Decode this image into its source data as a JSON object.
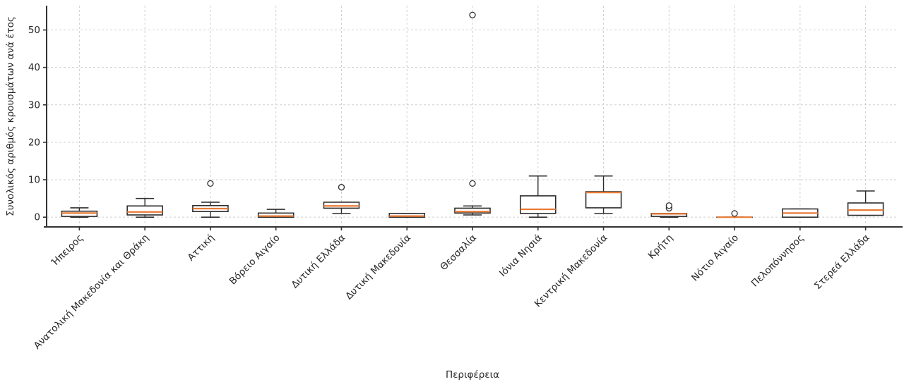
{
  "chart_data": {
    "type": "boxplot",
    "title": "",
    "xlabel": "Περιφέρεια",
    "ylabel": "Συνολικός αριθμός κρουσμάτων ανά έτος",
    "ylim": [
      -2.6,
      56.5
    ],
    "yticks": [
      0,
      10,
      20,
      30,
      40,
      50
    ],
    "grid": "both-dashed",
    "legend": "none",
    "categories": [
      "Ήπειρος",
      "Ανατολική Μακεδονία και Θράκη",
      "Αττική",
      "Βόρειο Αιγαίο",
      "Δυτική Ελλάδα",
      "Δυτική Μακεδονία",
      "Θεσσαλία",
      "Ιόνια Νησιά",
      "Κεντρική Μακεδονία",
      "Κρήτη",
      "Νότιο Αιγαίο",
      "Πελοπόννησος",
      "Στερεά Ελλάδα"
    ],
    "series": [
      {
        "label": "Ήπειρος",
        "whislo": 0,
        "q1": 0.2,
        "med": 1.1,
        "q3": 1.6,
        "whishi": 2.5,
        "fliers": []
      },
      {
        "label": "Ανατολική Μακεδονία και Θράκη",
        "whislo": 0,
        "q1": 0.6,
        "med": 1.4,
        "q3": 3.0,
        "whishi": 5.0,
        "fliers": []
      },
      {
        "label": "Αττική",
        "whislo": 0,
        "q1": 1.5,
        "med": 2.3,
        "q3": 3.1,
        "whishi": 4.0,
        "fliers": [
          9
        ]
      },
      {
        "label": "Βόρειο Αιγαίο",
        "whislo": 0,
        "q1": 0,
        "med": 0.3,
        "q3": 1.1,
        "whishi": 2.1,
        "fliers": []
      },
      {
        "label": "Δυτική Ελλάδα",
        "whislo": 1.0,
        "q1": 2.4,
        "med": 3.0,
        "q3": 4.0,
        "whishi": 4.0,
        "fliers": [
          8
        ]
      },
      {
        "label": "Δυτική Μακεδονία",
        "whislo": 0,
        "q1": 0,
        "med": 0.3,
        "q3": 1.0,
        "whishi": 1.0,
        "fliers": []
      },
      {
        "label": "Θεσσαλία",
        "whislo": 0.6,
        "q1": 1.1,
        "med": 1.5,
        "q3": 2.4,
        "whishi": 3.0,
        "fliers": [
          9,
          54
        ]
      },
      {
        "label": "Ιόνια Νησιά",
        "whislo": 0,
        "q1": 1.0,
        "med": 2.1,
        "q3": 5.7,
        "whishi": 11.0,
        "fliers": []
      },
      {
        "label": "Κεντρική Μακεδονία",
        "whislo": 1.0,
        "q1": 2.5,
        "med": 6.6,
        "q3": 6.8,
        "whishi": 11.0,
        "fliers": []
      },
      {
        "label": "Κρήτη",
        "whislo": 0,
        "q1": 0.2,
        "med": 0.9,
        "q3": 1.0,
        "whishi": 1.0,
        "fliers": [
          2.4,
          3.1
        ]
      },
      {
        "label": "Νότιο Αιγαίο",
        "whislo": 0,
        "q1": 0,
        "med": 0,
        "q3": 0,
        "whishi": 0,
        "fliers": [
          1
        ]
      },
      {
        "label": "Πελοπόννησος",
        "whislo": 0,
        "q1": 0,
        "med": 1.1,
        "q3": 2.2,
        "whishi": 2.2,
        "fliers": []
      },
      {
        "label": "Στερεά Ελλάδα",
        "whislo": 0.5,
        "q1": 0.5,
        "med": 1.9,
        "q3": 3.8,
        "whishi": 7.0,
        "fliers": []
      }
    ],
    "colors": {
      "median": "#e97a35",
      "box_edge": "#2e2e2e",
      "box_fill": "#ffffff",
      "grid": "#cfcfcf",
      "spine": "#333333",
      "tick_text": "#262626",
      "background": "#ffffff"
    }
  }
}
